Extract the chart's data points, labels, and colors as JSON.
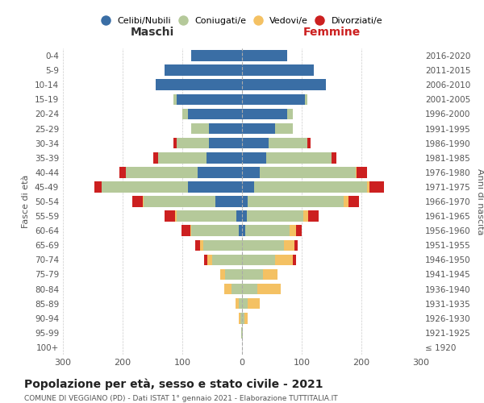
{
  "age_groups": [
    "100+",
    "95-99",
    "90-94",
    "85-89",
    "80-84",
    "75-79",
    "70-74",
    "65-69",
    "60-64",
    "55-59",
    "50-54",
    "45-49",
    "40-44",
    "35-39",
    "30-34",
    "25-29",
    "20-24",
    "15-19",
    "10-14",
    "5-9",
    "0-4"
  ],
  "birth_years": [
    "≤ 1920",
    "1921-1925",
    "1926-1930",
    "1931-1935",
    "1936-1940",
    "1941-1945",
    "1946-1950",
    "1951-1955",
    "1956-1960",
    "1961-1965",
    "1966-1970",
    "1971-1975",
    "1976-1980",
    "1981-1985",
    "1986-1990",
    "1991-1995",
    "1996-2000",
    "2001-2005",
    "2006-2010",
    "2011-2015",
    "2016-2020"
  ],
  "male": {
    "celibe": [
      0,
      0,
      0,
      0,
      0,
      0,
      0,
      0,
      5,
      10,
      45,
      90,
      75,
      60,
      55,
      55,
      90,
      110,
      145,
      130,
      85
    ],
    "coniugato": [
      0,
      2,
      3,
      6,
      18,
      28,
      50,
      65,
      80,
      100,
      120,
      145,
      120,
      80,
      55,
      30,
      10,
      5,
      0,
      0,
      0
    ],
    "vedovo": [
      0,
      0,
      2,
      5,
      12,
      8,
      8,
      5,
      2,
      2,
      1,
      0,
      0,
      0,
      0,
      0,
      0,
      0,
      0,
      0,
      0
    ],
    "divorziato": [
      0,
      0,
      0,
      0,
      0,
      0,
      5,
      8,
      15,
      18,
      18,
      12,
      10,
      8,
      5,
      0,
      0,
      0,
      0,
      0,
      0
    ]
  },
  "female": {
    "nubile": [
      0,
      0,
      0,
      0,
      0,
      0,
      0,
      0,
      5,
      8,
      10,
      20,
      30,
      40,
      45,
      55,
      75,
      105,
      140,
      120,
      75
    ],
    "coniugata": [
      0,
      1,
      4,
      10,
      25,
      35,
      55,
      70,
      75,
      95,
      160,
      190,
      160,
      110,
      65,
      30,
      10,
      5,
      0,
      0,
      0
    ],
    "vedova": [
      0,
      1,
      6,
      20,
      40,
      25,
      30,
      18,
      10,
      8,
      8,
      3,
      2,
      0,
      0,
      0,
      0,
      0,
      0,
      0,
      0
    ],
    "divorziata": [
      0,
      0,
      0,
      0,
      0,
      0,
      5,
      5,
      10,
      18,
      18,
      25,
      18,
      8,
      5,
      0,
      0,
      0,
      0,
      0,
      0
    ]
  },
  "colors": {
    "celibe": "#3a6ea5",
    "coniugato": "#b5c99a",
    "vedovo": "#f4c163",
    "divorziato": "#cc2020"
  },
  "legend_labels": [
    "Celibi/Nubili",
    "Coniugati/e",
    "Vedovi/e",
    "Divorziati/e"
  ],
  "title": "Popolazione per età, sesso e stato civile - 2021",
  "subtitle": "COMUNE DI VEGGIANO (PD) - Dati ISTAT 1° gennaio 2021 - Elaborazione TUTTITALIA.IT",
  "xlabel_left": "Maschi",
  "xlabel_right": "Femmine",
  "ylabel_left": "Fasce di età",
  "ylabel_right": "Anni di nascita",
  "xlim": 300,
  "background_color": "#ffffff",
  "grid_color": "#cccccc"
}
